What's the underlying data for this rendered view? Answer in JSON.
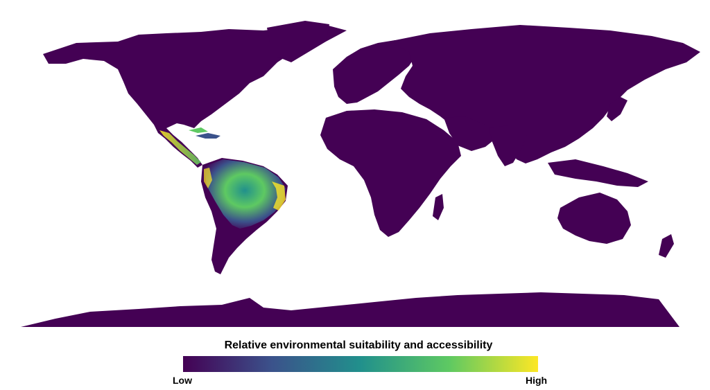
{
  "legend": {
    "title": "Relative environmental suitability and accessibility",
    "low_label": "Low",
    "high_label": "High",
    "colors": [
      "#440154",
      "#3b528b",
      "#21908c",
      "#5ec962",
      "#fde725"
    ]
  },
  "map": {
    "projection": "Robinson-like world map",
    "land_color": "#440154",
    "high_suitability_region": "Central America, northern and central South America",
    "ocean_color": "#ffffff"
  }
}
